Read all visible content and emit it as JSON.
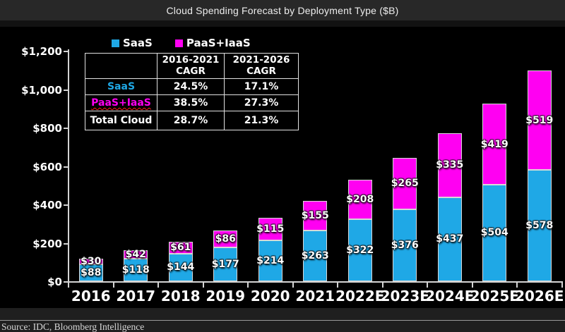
{
  "colors": {
    "saas": "#1FA8E6",
    "paas": "#FF00F2",
    "text": "#ffffff",
    "axis": "#d4d4d4"
  },
  "footer": {
    "source": "Source: IDC, Bloomberg Intelligence"
  },
  "legend": {
    "items": [
      {
        "label": "SaaS",
        "color": "#1FA8E6"
      },
      {
        "label": "PaaS+IaaS",
        "color": "#FF00F2"
      }
    ]
  },
  "cagr_table": {
    "corner": "",
    "col_headers": [
      "2016-2021 CAGR",
      "2021-2026 CAGR"
    ],
    "rows": [
      {
        "label": "SaaS",
        "color": "#1FA8E6",
        "squiggle": false,
        "values": [
          "24.5%",
          "17.1%"
        ]
      },
      {
        "label": "PaaS+IaaS",
        "color": "#FF00F2",
        "squiggle": true,
        "values": [
          "38.5%",
          "27.3%"
        ]
      },
      {
        "label": "Total Cloud",
        "color": "#FFFFFF",
        "squiggle": false,
        "values": [
          "28.7%",
          "21.3%"
        ]
      }
    ]
  },
  "chart_data": {
    "type": "bar",
    "stacked": true,
    "title": "Cloud Spending Forecast by Deployment Type ($B)",
    "xlabel": "",
    "ylabel": "",
    "ylim": [
      0,
      1200
    ],
    "grid": false,
    "legend_position": "top-left",
    "value_prefix": "$",
    "categories": [
      "2016",
      "2017",
      "2018",
      "2019",
      "2020",
      "2021",
      "2022E",
      "2023E",
      "2024E",
      "2025E",
      "2026E"
    ],
    "series": [
      {
        "name": "SaaS",
        "color": "#1FA8E6",
        "values": [
          88,
          118,
          144,
          177,
          214,
          263,
          322,
          376,
          437,
          504,
          578
        ]
      },
      {
        "name": "PaaS+IaaS",
        "color": "#FF00F2",
        "values": [
          30,
          42,
          61,
          86,
          115,
          155,
          208,
          265,
          335,
          419,
          519
        ]
      }
    ],
    "ytick_values": [
      0,
      200,
      400,
      600,
      800,
      1000,
      1200
    ],
    "ytick_labels": [
      "$0",
      "$200",
      "$400",
      "$600",
      "$800",
      "$1,000",
      "$1,200"
    ]
  }
}
